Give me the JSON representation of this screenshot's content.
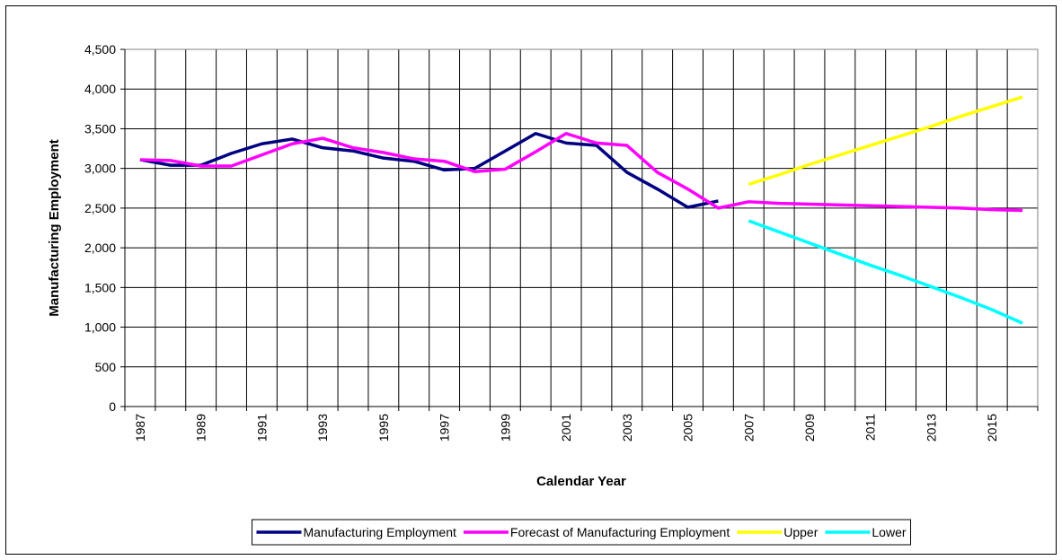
{
  "chart_data": {
    "type": "line",
    "xlabel": "Calendar Year",
    "ylabel": "Manufacturing Employment",
    "categories": [
      "1987",
      null,
      "1989",
      null,
      "1991",
      null,
      "1993",
      null,
      "1995",
      null,
      "1997",
      null,
      "1999",
      null,
      "2001",
      null,
      "2003",
      null,
      "2005",
      null,
      "2007",
      null,
      "2009",
      null,
      "2011",
      null,
      "2013",
      null,
      "2015",
      null
    ],
    "series": [
      {
        "name": "Manufacturing Employment",
        "color": "#000080",
        "values": [
          3110,
          3040,
          3040,
          3190,
          3310,
          3370,
          3260,
          3220,
          3130,
          3090,
          2980,
          3000,
          3220,
          3440,
          3320,
          3290,
          2950,
          2740,
          2510,
          2590,
          null,
          null,
          null,
          null,
          null,
          null,
          null,
          null,
          null,
          null
        ]
      },
      {
        "name": "Forecast of Manufacturing Employment",
        "color": "#ff00ff",
        "values": [
          3110,
          3100,
          3030,
          3030,
          3170,
          3310,
          3380,
          3260,
          3200,
          3120,
          3090,
          2960,
          2990,
          3210,
          3440,
          3320,
          3290,
          2950,
          2740,
          2500,
          2580,
          2560,
          2550,
          2540,
          2530,
          2520,
          2510,
          2500,
          2480,
          2470
        ]
      },
      {
        "name": "Upper",
        "color": "#ffff00",
        "values": [
          null,
          null,
          null,
          null,
          null,
          null,
          null,
          null,
          null,
          null,
          null,
          null,
          null,
          null,
          null,
          null,
          null,
          null,
          null,
          null,
          2800,
          2920,
          3050,
          3170,
          3290,
          3410,
          3530,
          3660,
          3780,
          3900
        ]
      },
      {
        "name": "Lower",
        "color": "#00ffff",
        "values": [
          null,
          null,
          null,
          null,
          null,
          null,
          null,
          null,
          null,
          null,
          null,
          null,
          null,
          null,
          null,
          null,
          null,
          null,
          null,
          null,
          2340,
          2200,
          2060,
          1920,
          1780,
          1650,
          1510,
          1370,
          1220,
          1050
        ]
      }
    ],
    "ylim": [
      0,
      4500
    ],
    "yticks": [
      0,
      500,
      {
        "value": 1000,
        "label": "1,000"
      },
      {
        "value": 1500,
        "label": "1,500"
      },
      {
        "value": 2000,
        "label": "2,000"
      },
      {
        "value": 2500,
        "label": "2,500"
      },
      {
        "value": 3000,
        "label": "3,000"
      },
      {
        "value": 3500,
        "label": "3,500"
      },
      {
        "value": 4000,
        "label": "4,000"
      },
      {
        "value": 4500,
        "label": "4,500"
      }
    ],
    "grid": true,
    "legend": "bottom"
  }
}
